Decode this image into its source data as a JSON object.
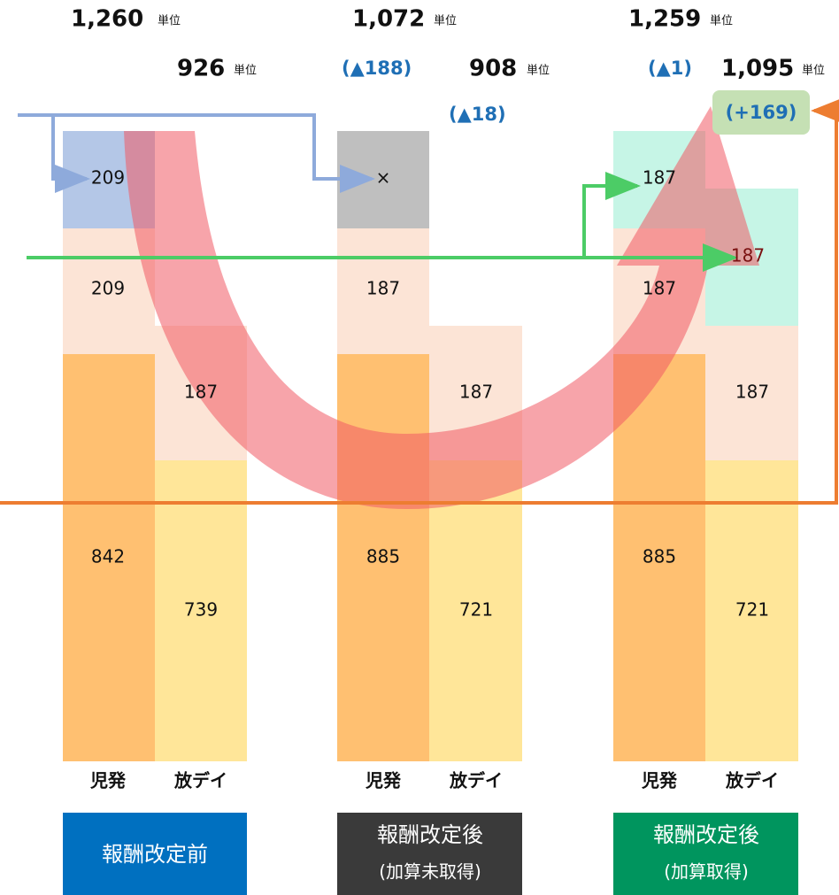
{
  "groups": [
    {
      "title": "報酬改定前",
      "total": "1,260",
      "unit": "単位",
      "sub_total": "926",
      "bars": [
        {
          "label": "児発",
          "segments": [
            "209",
            "209",
            "842"
          ]
        },
        {
          "label": "放デイ",
          "segments": [
            "187",
            "739"
          ]
        }
      ]
    },
    {
      "title": "報酬改定後",
      "subtitle": "(加算未取得)",
      "total": "1,072",
      "unit": "単位",
      "total_change": "(▲188)",
      "sub_total": "908",
      "sub_change": "(▲18)",
      "bars": [
        {
          "label": "児発",
          "segments": [
            "×",
            "187",
            "885"
          ]
        },
        {
          "label": "放デイ",
          "segments": [
            "187",
            "721"
          ]
        }
      ]
    },
    {
      "title": "報酬改定後",
      "subtitle": "(加算取得)",
      "total": "1,259",
      "unit": "単位",
      "total_change": "(▲1)",
      "sub_total": "1,095",
      "sub_change": "(+169)",
      "bars": [
        {
          "label": "児発",
          "segments": [
            "187",
            "187",
            "885"
          ]
        },
        {
          "label": "放デイ",
          "segments": [
            "187",
            "187",
            "721"
          ]
        }
      ]
    }
  ]
}
